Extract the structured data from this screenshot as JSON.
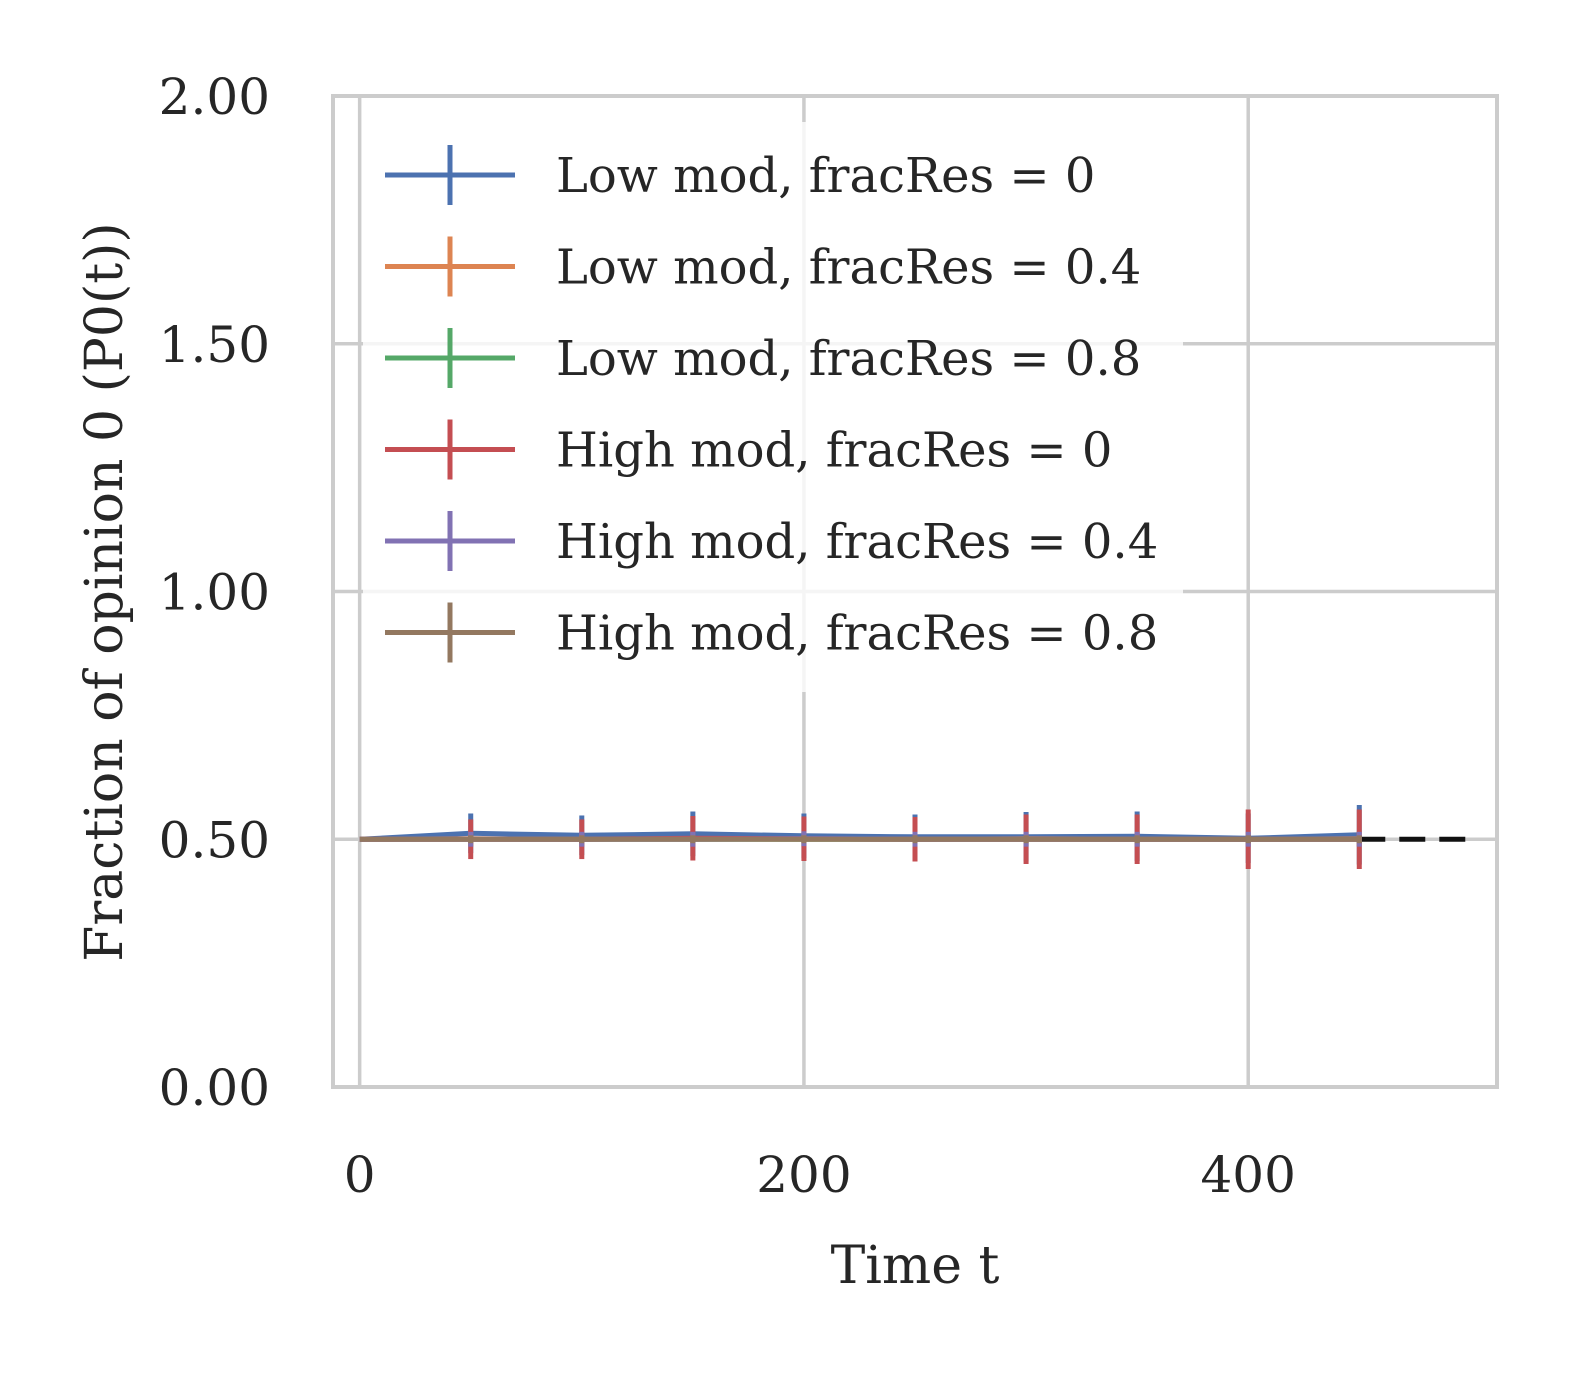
{
  "chart_data": {
    "type": "line",
    "xlabel": "Time t",
    "ylabel": "Fraction of opinion 0 (P0(t))",
    "xlim": [
      -12,
      512
    ],
    "ylim": [
      0,
      2
    ],
    "xticks": [
      0,
      200,
      400
    ],
    "xtick_labels": [
      "0",
      "200",
      "400"
    ],
    "yticks": [
      0,
      0.5,
      1.0,
      1.5,
      2.0
    ],
    "ytick_labels": [
      "0.00",
      "0.50",
      "1.00",
      "1.50",
      "2.00"
    ],
    "grid": true,
    "legend_position": "upper-left",
    "x": [
      0,
      50,
      100,
      150,
      200,
      250,
      300,
      350,
      400,
      450
    ],
    "series": [
      {
        "name": "Low mod, fracRes = 0",
        "color": "#4c72b0",
        "values": [
          0.5,
          0.512,
          0.508,
          0.511,
          0.507,
          0.505,
          0.505,
          0.506,
          0.502,
          0.509
        ],
        "errors": [
          0,
          0.04,
          0.04,
          0.045,
          0.045,
          0.045,
          0.05,
          0.05,
          0.05,
          0.06
        ]
      },
      {
        "name": "Low mod, fracRes = 0.4",
        "color": "#dd8452",
        "values": [
          0.5,
          0.501,
          0.5,
          0.501,
          0.5,
          0.5,
          0.501,
          0.5,
          0.5,
          0.501
        ],
        "errors": [
          0,
          0.015,
          0.015,
          0.015,
          0.015,
          0.015,
          0.015,
          0.015,
          0.015,
          0.015
        ]
      },
      {
        "name": "Low mod, fracRes = 0.8",
        "color": "#55a868",
        "values": [
          0.5,
          0.5,
          0.5,
          0.5,
          0.5,
          0.5,
          0.5,
          0.5,
          0.5,
          0.5
        ],
        "errors": [
          0,
          0.008,
          0.008,
          0.008,
          0.008,
          0.008,
          0.008,
          0.008,
          0.008,
          0.008
        ]
      },
      {
        "name": "High mod, fracRes = 0",
        "color": "#c44e52",
        "values": [
          0.5,
          0.5,
          0.5,
          0.502,
          0.501,
          0.5,
          0.5,
          0.5,
          0.5,
          0.5
        ],
        "errors": [
          0,
          0.04,
          0.04,
          0.045,
          0.045,
          0.045,
          0.05,
          0.05,
          0.06,
          0.06
        ]
      },
      {
        "name": "High mod, fracRes = 0.4",
        "color": "#8172b3",
        "values": [
          0.5,
          0.5,
          0.5,
          0.5,
          0.501,
          0.5,
          0.5,
          0.5,
          0.5,
          0.5
        ],
        "errors": [
          0,
          0.015,
          0.015,
          0.015,
          0.015,
          0.015,
          0.015,
          0.015,
          0.015,
          0.015
        ]
      },
      {
        "name": "High mod, fracRes = 0.8",
        "color": "#937860",
        "values": [
          0.5,
          0.5,
          0.5,
          0.5,
          0.5,
          0.5,
          0.5,
          0.5,
          0.5,
          0.5
        ],
        "errors": [
          0,
          0.008,
          0.008,
          0.008,
          0.008,
          0.008,
          0.008,
          0.008,
          0.008,
          0.008
        ]
      }
    ],
    "reference_line": {
      "y": 0.5,
      "x_from": 450,
      "x_to": 500,
      "color": "#111111",
      "style": "dashed"
    }
  }
}
